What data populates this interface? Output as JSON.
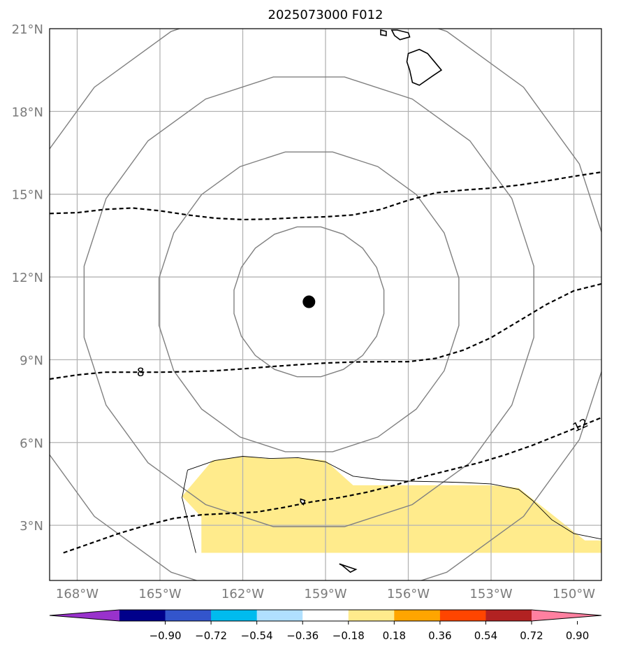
{
  "title": "2025073000 F012",
  "map": {
    "lat_range": [
      1.0,
      21.0
    ],
    "lon_range": [
      -169.0,
      -149.0
    ],
    "lat_ticks": [
      {
        "value": 21,
        "label": "21°N"
      },
      {
        "value": 18,
        "label": "18°N"
      },
      {
        "value": 15,
        "label": "15°N"
      },
      {
        "value": 12,
        "label": "12°N"
      },
      {
        "value": 9,
        "label": "9°N"
      },
      {
        "value": 6,
        "label": "6°N"
      },
      {
        "value": 3,
        "label": "3°N"
      }
    ],
    "lon_ticks": [
      {
        "value": -168,
        "label": "168°W"
      },
      {
        "value": -165,
        "label": "165°W"
      },
      {
        "value": -162,
        "label": "162°W"
      },
      {
        "value": -159,
        "label": "159°W"
      },
      {
        "value": -156,
        "label": "156°W"
      },
      {
        "value": -153,
        "label": "153°W"
      },
      {
        "value": -150,
        "label": "150°W"
      }
    ],
    "grid": true,
    "center_marker": {
      "lon": -159.6,
      "lat": 11.1
    },
    "range_rings_deg": [
      2.75,
      5.5,
      8.25,
      11.0
    ],
    "contours": [
      {
        "label": "8",
        "points": [
          [
            -169,
            8.3
          ],
          [
            -168,
            8.45
          ],
          [
            -167,
            8.55
          ],
          [
            -166,
            8.55
          ],
          [
            -165,
            8.55
          ],
          [
            -164,
            8.57
          ],
          [
            -163,
            8.6
          ],
          [
            -162,
            8.67
          ],
          [
            -161,
            8.75
          ],
          [
            -160,
            8.82
          ],
          [
            -159,
            8.88
          ],
          [
            -158,
            8.92
          ],
          [
            -157,
            8.93
          ],
          [
            -156,
            8.93
          ],
          [
            -155,
            9.05
          ],
          [
            -154,
            9.35
          ],
          [
            -153,
            9.8
          ],
          [
            -152,
            10.4
          ],
          [
            -151,
            11.0
          ],
          [
            -150,
            11.5
          ],
          [
            -149,
            11.75
          ]
        ]
      },
      {
        "label": "",
        "points": [
          [
            -169,
            14.3
          ],
          [
            -168,
            14.33
          ],
          [
            -167,
            14.45
          ],
          [
            -166,
            14.5
          ],
          [
            -165,
            14.4
          ],
          [
            -164,
            14.25
          ],
          [
            -163,
            14.13
          ],
          [
            -162,
            14.08
          ],
          [
            -161,
            14.1
          ],
          [
            -160,
            14.15
          ],
          [
            -159,
            14.18
          ],
          [
            -158,
            14.25
          ],
          [
            -157,
            14.45
          ],
          [
            -156,
            14.78
          ],
          [
            -155,
            15.05
          ],
          [
            -154,
            15.15
          ],
          [
            -153,
            15.22
          ],
          [
            -152,
            15.33
          ],
          [
            -151,
            15.48
          ],
          [
            -150,
            15.65
          ],
          [
            -149,
            15.8
          ]
        ]
      },
      {
        "label": "12",
        "points": [
          [
            -168.5,
            2.0
          ],
          [
            -167.5,
            2.35
          ],
          [
            -166.5,
            2.7
          ],
          [
            -165.5,
            3.0
          ],
          [
            -164.5,
            3.25
          ],
          [
            -163.5,
            3.38
          ],
          [
            -162.5,
            3.43
          ],
          [
            -161.5,
            3.48
          ],
          [
            -160.5,
            3.65
          ],
          [
            -159.5,
            3.85
          ],
          [
            -158.5,
            4.0
          ],
          [
            -157.5,
            4.2
          ],
          [
            -156.5,
            4.45
          ],
          [
            -155.5,
            4.75
          ],
          [
            -154.5,
            5.0
          ],
          [
            -153.5,
            5.25
          ],
          [
            -152.5,
            5.55
          ],
          [
            -151.5,
            5.9
          ],
          [
            -150.5,
            6.3
          ],
          [
            -149.5,
            6.7
          ],
          [
            -149,
            6.9
          ]
        ]
      }
    ],
    "shaded_region": {
      "color": "#ffeb8c",
      "points": [
        [
          -164.2,
          4.05
        ],
        [
          -163.1,
          5.35
        ],
        [
          -162.0,
          5.5
        ],
        [
          -161.0,
          5.4
        ],
        [
          -160.0,
          5.45
        ],
        [
          -159.0,
          5.35
        ],
        [
          -158.0,
          4.45
        ],
        [
          -157.0,
          4.45
        ],
        [
          -155.0,
          4.45
        ],
        [
          -153.0,
          4.45
        ],
        [
          -152.0,
          4.35
        ],
        [
          -150.8,
          3.4
        ],
        [
          -149.6,
          2.45
        ],
        [
          -149.0,
          2.45
        ],
        [
          -149.0,
          2.0
        ],
        [
          -163.5,
          2.0
        ],
        [
          -163.5,
          3.3
        ],
        [
          -164.2,
          4.05
        ]
      ]
    },
    "thin_outline": [
      [
        -164,
        5.0
      ],
      [
        -163,
        5.35
      ],
      [
        -162,
        5.5
      ],
      [
        -161,
        5.42
      ],
      [
        -160,
        5.45
      ],
      [
        -159,
        5.3
      ],
      [
        -158,
        4.78
      ],
      [
        -157,
        4.65
      ],
      [
        -156,
        4.6
      ],
      [
        -155,
        4.58
      ],
      [
        -154,
        4.55
      ],
      [
        -153,
        4.5
      ],
      [
        -152,
        4.3
      ],
      [
        -151.5,
        3.9
      ],
      [
        -150.8,
        3.2
      ],
      [
        -150,
        2.7
      ],
      [
        -149,
        2.5
      ]
    ],
    "thin_outline_left": [
      [
        -164,
        5.0
      ],
      [
        -164.2,
        4.0
      ],
      [
        -163.9,
        2.8
      ],
      [
        -163.7,
        2.0
      ]
    ],
    "islands": [
      {
        "name": "hawaii",
        "points": [
          [
            -156.0,
            20.1
          ],
          [
            -155.6,
            20.25
          ],
          [
            -155.3,
            20.1
          ],
          [
            -155.05,
            19.8
          ],
          [
            -154.8,
            19.5
          ],
          [
            -155.1,
            19.3
          ],
          [
            -155.6,
            18.95
          ],
          [
            -155.85,
            19.05
          ],
          [
            -155.95,
            19.5
          ],
          [
            -156.05,
            19.8
          ]
        ]
      },
      {
        "name": "maui",
        "points": [
          [
            -156.6,
            20.95
          ],
          [
            -156.4,
            20.95
          ],
          [
            -156.0,
            20.85
          ],
          [
            -155.95,
            20.7
          ],
          [
            -156.3,
            20.6
          ],
          [
            -156.5,
            20.75
          ]
        ]
      },
      {
        "name": "kahoolawe",
        "points": [
          [
            -157.0,
            20.95
          ],
          [
            -156.8,
            20.9
          ],
          [
            -156.8,
            20.75
          ],
          [
            -157.0,
            20.78
          ]
        ]
      },
      {
        "name": "islet-south",
        "points": [
          [
            -158.5,
            1.6
          ],
          [
            -158.2,
            1.5
          ],
          [
            -157.9,
            1.4
          ],
          [
            -158.1,
            1.3
          ],
          [
            -158.4,
            1.55
          ]
        ]
      },
      {
        "name": "islet-center",
        "points": [
          [
            -159.9,
            3.95
          ],
          [
            -159.75,
            3.9
          ],
          [
            -159.8,
            3.75
          ],
          [
            -159.9,
            3.85
          ]
        ]
      }
    ]
  },
  "colorbar": {
    "colors": [
      "#9932cc",
      "#00008b",
      "#3355cc",
      "#00bbee",
      "#b0e0ff",
      "#ffffff",
      "#ffeb8c",
      "#ffa500",
      "#ff4500",
      "#b22222",
      "#ff80a0"
    ],
    "tick_labels": [
      "−0.90",
      "−0.72",
      "−0.54",
      "−0.36",
      "−0.18",
      "0.18",
      "0.36",
      "0.54",
      "0.72",
      "0.90"
    ]
  }
}
